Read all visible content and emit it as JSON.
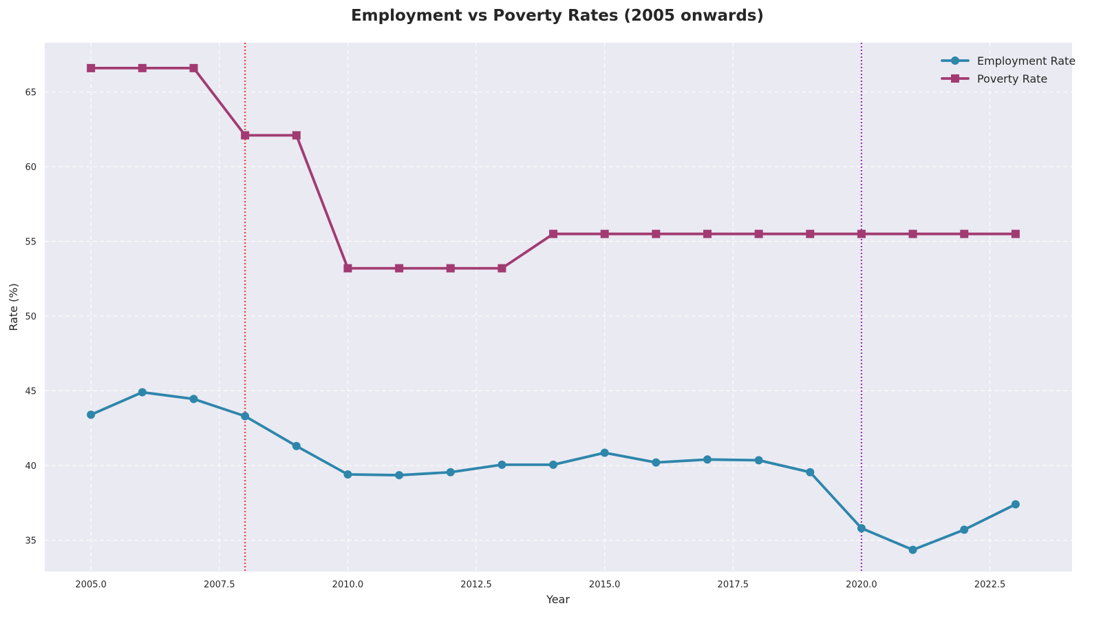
{
  "chart_data": {
    "type": "line",
    "title": "Employment vs Poverty Rates (2005 onwards)",
    "xlabel": "Year",
    "ylabel": "Rate (%)",
    "xlim": [
      2004.1,
      2024.1
    ],
    "ylim": [
      32.9,
      68.3
    ],
    "xticks": [
      2005.0,
      2007.5,
      2010.0,
      2012.5,
      2015.0,
      2017.5,
      2020.0,
      2022.5
    ],
    "xtick_labels": [
      "2005.0",
      "2007.5",
      "2010.0",
      "2012.5",
      "2015.0",
      "2017.5",
      "2020.0",
      "2022.5"
    ],
    "yticks": [
      35,
      40,
      45,
      50,
      55,
      60,
      65
    ],
    "ytick_labels": [
      "35",
      "40",
      "45",
      "50",
      "55",
      "60",
      "65"
    ],
    "grid": true,
    "legend_position": "top-right",
    "background": "#eaeaf2",
    "x": [
      2005,
      2006,
      2007,
      2008,
      2009,
      2010,
      2011,
      2012,
      2013,
      2014,
      2015,
      2016,
      2017,
      2018,
      2019,
      2020,
      2021,
      2022,
      2023
    ],
    "series": [
      {
        "name": "Employment Rate",
        "color": "#2e86ab",
        "marker": "circle",
        "values": [
          43.4,
          44.9,
          44.45,
          43.3,
          41.3,
          39.4,
          39.35,
          39.55,
          40.05,
          40.05,
          40.85,
          40.2,
          40.4,
          40.35,
          39.55,
          35.8,
          34.35,
          35.7,
          37.4
        ]
      },
      {
        "name": "Poverty Rate",
        "color": "#a23b72",
        "marker": "square",
        "values": [
          66.6,
          66.6,
          66.6,
          62.1,
          62.1,
          53.2,
          53.2,
          53.2,
          53.2,
          55.5,
          55.5,
          55.5,
          55.5,
          55.5,
          55.5,
          55.5,
          55.5,
          55.5,
          55.5
        ]
      }
    ],
    "vlines": [
      {
        "x": 2008,
        "color": "#ff3333",
        "style": "dotted"
      },
      {
        "x": 2020,
        "color": "#9b30b5",
        "style": "dotted"
      }
    ]
  }
}
